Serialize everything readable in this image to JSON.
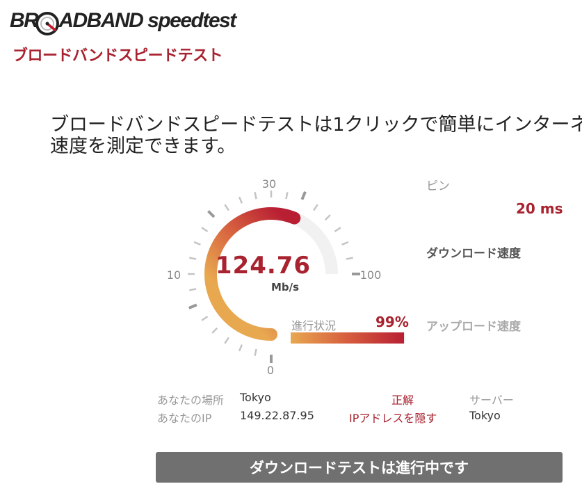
{
  "logo": {
    "prefix": "BR",
    "suffix": "ADBAND speedtest",
    "subtitle": "ブロードバンドスピードテスト"
  },
  "intro": {
    "line1": "ブロードバンドスピードテストは1クリックで簡単にインターネ",
    "line2": "速度を測定できます。"
  },
  "gauge": {
    "scale_labels": {
      "min": "0",
      "low": "10",
      "mid": "30",
      "max": "100"
    },
    "current_speed": "124.76",
    "unit": "Mb/s",
    "arc_fill_fraction": 0.75
  },
  "progress": {
    "label": "進行状況",
    "percent_text": "99%",
    "fraction": 0.99
  },
  "stats": {
    "ping_label": "ピン",
    "ping_value": "20 ms",
    "download_label": "ダウンロード速度",
    "upload_label": "アップロード速度"
  },
  "info": {
    "location_label": "あなたの場所",
    "location_value": "Tokyo",
    "ip_label": "あなたのIP",
    "ip_value": "149.22.87.95",
    "correct_link": "正解",
    "hide_ip_link": "IPアドレスを隠す",
    "server_label": "サーバー",
    "server_value": "Tokyo"
  },
  "action_button": "ダウンロードテストは進行中です",
  "colors": {
    "accent": "#a8222f",
    "gradient_start": "#e8a850",
    "gradient_end": "#b81f33",
    "button_bg": "#707070"
  }
}
